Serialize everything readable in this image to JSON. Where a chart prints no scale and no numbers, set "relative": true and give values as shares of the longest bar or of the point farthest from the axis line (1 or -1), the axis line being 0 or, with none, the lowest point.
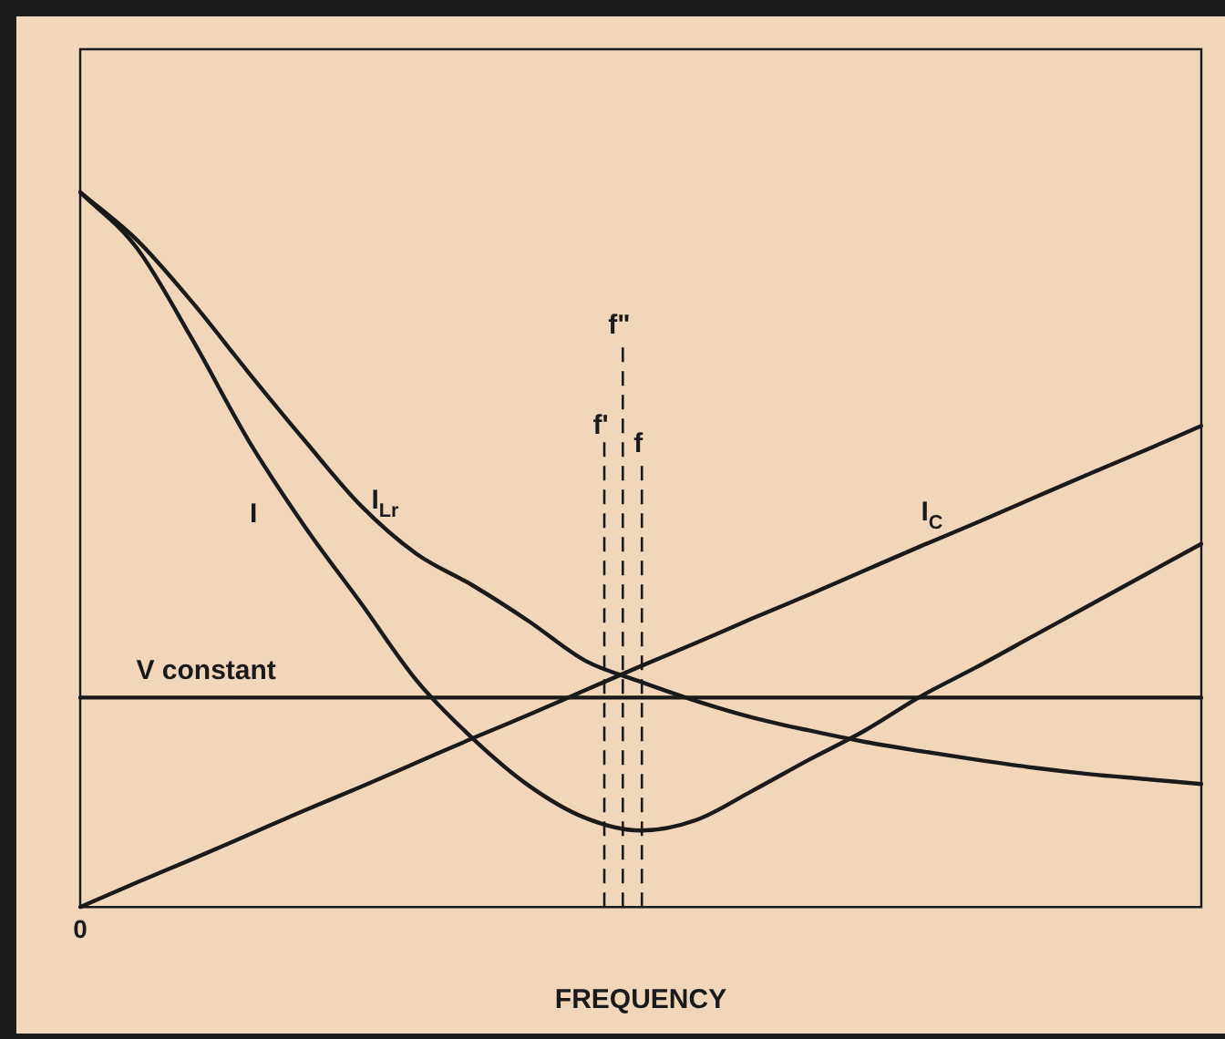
{
  "chart_data": {
    "type": "line",
    "relative": true,
    "xlabel": "FREQUENCY",
    "categories": [
      null,
      null,
      null,
      null,
      null,
      null,
      null,
      null,
      null,
      null,
      null,
      null,
      null,
      null,
      null,
      null,
      null,
      null,
      null,
      null,
      null
    ],
    "series": [
      {
        "name": "I",
        "color": "#1a1a1a",
        "values": [
          1.0,
          0.923,
          0.794,
          0.653,
          0.533,
          0.426,
          0.317,
          0.236,
          0.17,
          0.125,
          0.107,
          0.122,
          0.163,
          0.206,
          0.247,
          0.295,
          0.336,
          0.379,
          0.422,
          0.465,
          0.508
        ]
      },
      {
        "name": "I$_{Lr}$",
        "color": "#1a1a1a",
        "values": [
          1.0,
          0.934,
          0.846,
          0.748,
          0.653,
          0.562,
          0.494,
          0.45,
          0.4,
          0.345,
          0.315,
          0.288,
          0.265,
          0.247,
          0.231,
          0.218,
          0.206,
          0.195,
          0.186,
          0.179,
          0.172
        ]
      },
      {
        "name": "I$_{C}$",
        "color": "#1a1a1a",
        "values": [
          0,
          0.034,
          0.067,
          0.101,
          0.135,
          0.168,
          0.202,
          0.236,
          0.269,
          0.303,
          0.337,
          0.37,
          0.404,
          0.437,
          0.471,
          0.505,
          0.538,
          0.572,
          0.606,
          0.639,
          0.673
        ]
      },
      {
        "name": "V constant",
        "color": "#1a1a1a",
        "values": [
          0.293,
          0.293,
          0.293,
          0.293,
          0.293,
          0.293,
          0.293,
          0.293,
          0.293,
          0.293,
          0.293,
          0.293,
          0.293,
          0.293,
          0.293,
          0.293,
          0.293,
          0.293,
          0.293,
          0.293,
          0.293
        ]
      }
    ],
    "annotations": [
      "0",
      "f'",
      "f\"",
      "f"
    ],
    "marker": "none",
    "line_style": "solid",
    "grid": false,
    "legend": false
  }
}
